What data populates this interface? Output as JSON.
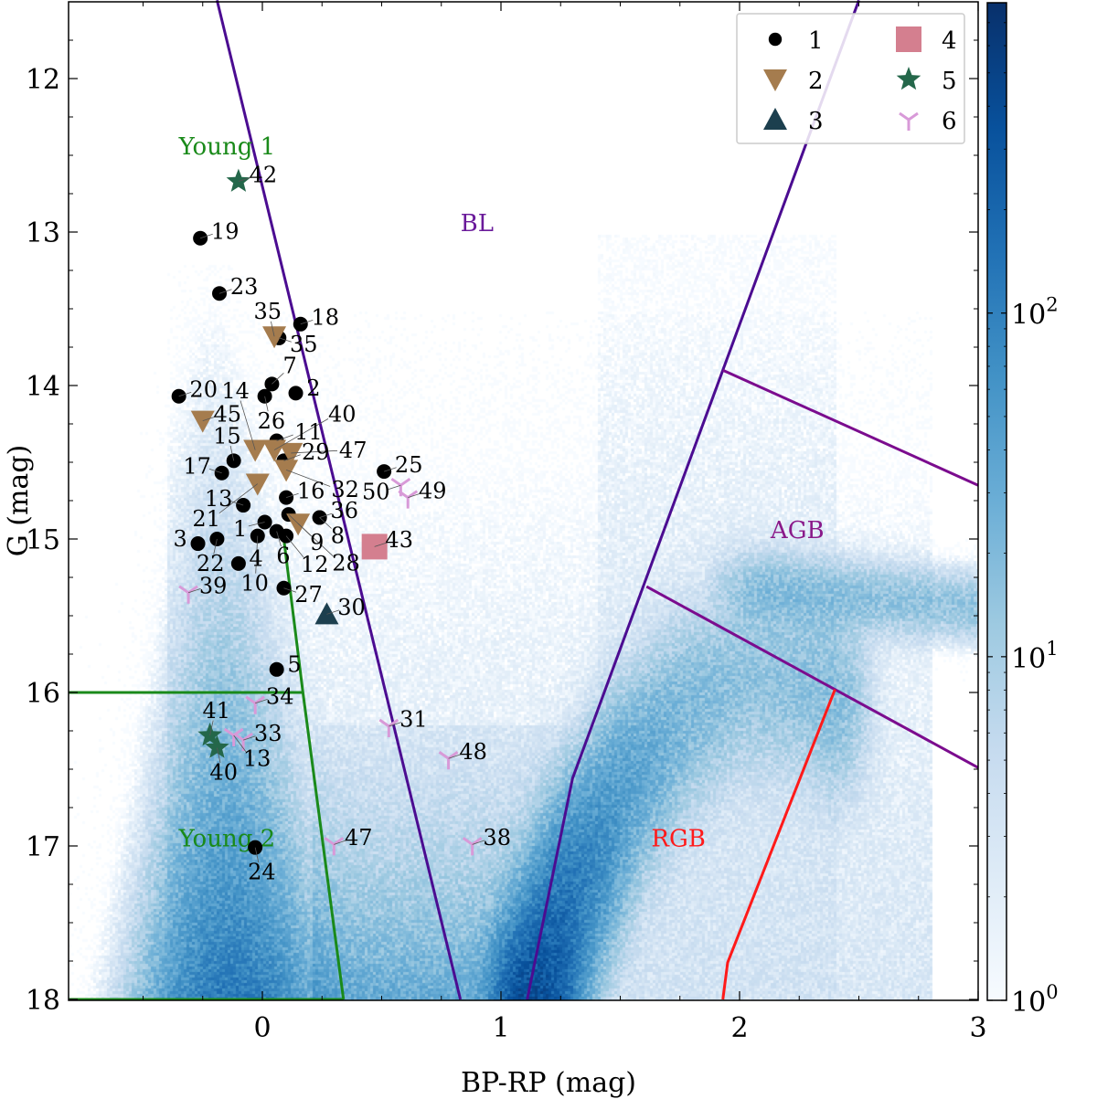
{
  "chart_data": {
    "type": "scatter",
    "xlabel": "BP-RP (mag)",
    "ylabel": "G (mag)",
    "xlim": [
      -0.81,
      3.0
    ],
    "ylim": [
      18.0,
      11.49
    ],
    "y_inverted": true,
    "xticks": [
      0,
      1,
      2,
      3
    ],
    "yticks": [
      12,
      13,
      14,
      15,
      16,
      17,
      18
    ],
    "grid": false,
    "legend_placement": "top-right",
    "colorbar": {
      "scale": "log",
      "range": [
        1,
        800
      ],
      "ticks": [
        {
          "base": "10",
          "exp": "0",
          "value": 1
        },
        {
          "base": "10",
          "exp": "1",
          "value": 10
        },
        {
          "base": "10",
          "exp": "2",
          "value": 100
        }
      ],
      "colormap": "Blues"
    },
    "legend": [
      {
        "label": "1",
        "marker": "circle",
        "color": "#000000"
      },
      {
        "label": "2",
        "marker": "triangle-down",
        "color": "#a57c4e"
      },
      {
        "label": "3",
        "marker": "triangle-up",
        "color": "#1c3f4e"
      },
      {
        "label": "4",
        "marker": "square",
        "color": "#d47f8f"
      },
      {
        "label": "5",
        "marker": "star",
        "color": "#24674a"
      },
      {
        "label": "6",
        "marker": "tri-y",
        "color": "#d89ad8"
      }
    ],
    "series": [
      {
        "class": "1",
        "points": [
          {
            "id": "19",
            "x": -0.26,
            "y": 13.04
          },
          {
            "id": "23",
            "x": -0.18,
            "y": 13.4
          },
          {
            "id": "18",
            "x": 0.16,
            "y": 13.6
          },
          {
            "id": "35",
            "x": 0.07,
            "y": 13.69
          },
          {
            "id": "20",
            "x": -0.35,
            "y": 14.07
          },
          {
            "id": "7",
            "x": 0.04,
            "y": 13.99
          },
          {
            "id": "26",
            "x": 0.01,
            "y": 14.07
          },
          {
            "id": "2",
            "x": 0.14,
            "y": 14.05
          },
          {
            "id": "15",
            "x": -0.12,
            "y": 14.49
          },
          {
            "id": "17",
            "x": -0.17,
            "y": 14.57
          },
          {
            "id": "11",
            "x": 0.06,
            "y": 14.36
          },
          {
            "id": "29",
            "x": 0.09,
            "y": 14.49
          },
          {
            "id": "16",
            "x": 0.1,
            "y": 14.73
          },
          {
            "id": "9",
            "x": 0.11,
            "y": 14.84
          },
          {
            "id": "36",
            "x": 0.24,
            "y": 14.86
          },
          {
            "id": "8",
            "x": 0.24,
            "y": 14.86
          },
          {
            "id": "13",
            "x": -0.08,
            "y": 14.78
          },
          {
            "id": "1",
            "x": 0.01,
            "y": 14.89
          },
          {
            "id": "6",
            "x": 0.06,
            "y": 14.95
          },
          {
            "id": "22",
            "x": -0.19,
            "y": 15.0
          },
          {
            "id": "3",
            "x": -0.27,
            "y": 15.03
          },
          {
            "id": "10",
            "x": -0.02,
            "y": 14.98
          },
          {
            "id": "12",
            "x": 0.1,
            "y": 14.98
          },
          {
            "id": "4",
            "x": -0.1,
            "y": 15.16
          },
          {
            "id": "25",
            "x": 0.51,
            "y": 14.56
          },
          {
            "id": "27",
            "x": 0.09,
            "y": 15.32
          },
          {
            "id": "5",
            "x": 0.06,
            "y": 15.85
          },
          {
            "id": "24",
            "x": -0.03,
            "y": 17.01
          }
        ]
      },
      {
        "class": "2",
        "points": [
          {
            "id": "35",
            "x": 0.05,
            "y": 13.68
          },
          {
            "id": "45",
            "x": -0.25,
            "y": 14.23
          },
          {
            "id": "14",
            "x": -0.03,
            "y": 14.42
          },
          {
            "id": "40",
            "x": 0.05,
            "y": 14.42
          },
          {
            "id": "47",
            "x": 0.12,
            "y": 14.44
          },
          {
            "id": "32",
            "x": 0.1,
            "y": 14.55
          },
          {
            "id": "21",
            "x": -0.02,
            "y": 14.64
          },
          {
            "id": "28",
            "x": 0.15,
            "y": 14.9
          }
        ]
      },
      {
        "class": "3",
        "points": [
          {
            "id": "30",
            "x": 0.27,
            "y": 15.49
          }
        ]
      },
      {
        "class": "4",
        "points": [
          {
            "id": "43",
            "x": 0.47,
            "y": 15.05
          }
        ]
      },
      {
        "class": "5",
        "points": [
          {
            "id": "42",
            "x": -0.1,
            "y": 12.67
          },
          {
            "id": "41",
            "x": -0.22,
            "y": 16.28
          },
          {
            "id": "40",
            "x": -0.19,
            "y": 16.36
          }
        ]
      },
      {
        "class": "6",
        "points": [
          {
            "id": "39",
            "x": -0.31,
            "y": 15.35
          },
          {
            "id": "50",
            "x": 0.58,
            "y": 14.65
          },
          {
            "id": "49",
            "x": 0.61,
            "y": 14.73
          },
          {
            "id": "31",
            "x": 0.53,
            "y": 16.22
          },
          {
            "id": "48",
            "x": 0.78,
            "y": 16.43
          },
          {
            "id": "47",
            "x": 0.3,
            "y": 16.99
          },
          {
            "id": "38",
            "x": 0.88,
            "y": 16.99
          },
          {
            "id": "34",
            "x": -0.03,
            "y": 16.07
          },
          {
            "id": "13",
            "x": -0.12,
            "y": 16.28
          },
          {
            "id": "33",
            "x": -0.08,
            "y": 16.31
          }
        ]
      }
    ],
    "boundaries": [
      {
        "color": "#4b0c91",
        "points": [
          [
            -0.19,
            11.49
          ],
          [
            0.83,
            18.0
          ]
        ]
      },
      {
        "color": "#4b0c91",
        "points": [
          [
            1.11,
            18.0
          ],
          [
            1.3,
            16.56
          ],
          [
            1.93,
            13.9
          ],
          [
            2.5,
            11.49
          ]
        ]
      },
      {
        "color": "#7b0c8e",
        "points": [
          [
            1.93,
            13.9
          ],
          [
            3.0,
            14.65
          ]
        ]
      },
      {
        "color": "#7b0c8e",
        "points": [
          [
            1.61,
            15.31
          ],
          [
            3.0,
            16.49
          ]
        ]
      },
      {
        "color": "#ff1a1a",
        "points": [
          [
            2.4,
            15.98
          ],
          [
            1.95,
            17.76
          ],
          [
            1.93,
            18.0
          ]
        ]
      },
      {
        "color": "#1a8a1a",
        "points": [
          [
            0.09,
            15.0
          ],
          [
            0.17,
            16.0
          ],
          [
            0.34,
            18.0
          ]
        ]
      },
      {
        "color": "#1a8a1a",
        "points": [
          [
            -0.81,
            16.0
          ],
          [
            0.17,
            16.0
          ]
        ]
      },
      {
        "color": "#1a8a1a",
        "points": [
          [
            -0.81,
            18.0
          ],
          [
            0.34,
            18.0
          ]
        ]
      }
    ],
    "annotations": [
      {
        "text": "Young 1",
        "x": -0.35,
        "y": 12.44,
        "color": "#1a8a1a"
      },
      {
        "text": "BL",
        "x": 0.83,
        "y": 12.94,
        "color": "#6a1a9a"
      },
      {
        "text": "AGB",
        "x": 2.13,
        "y": 14.94,
        "color": "#8a1a8a"
      },
      {
        "text": "RGB",
        "x": 1.63,
        "y": 16.95,
        "color": "#ff1a1a"
      },
      {
        "text": "Young 2",
        "x": -0.35,
        "y": 16.95,
        "color": "#1a8a1a"
      }
    ]
  }
}
